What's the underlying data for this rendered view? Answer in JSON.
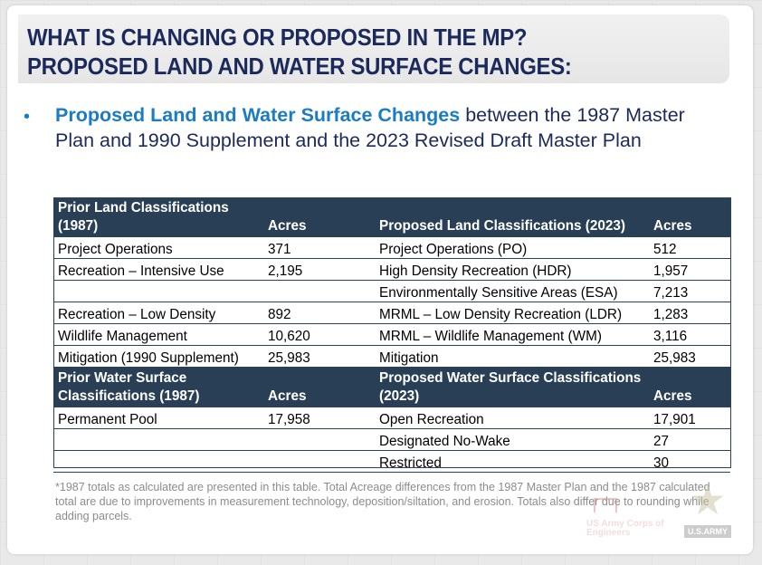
{
  "header": {
    "line1": "WHAT IS CHANGING OR PROPOSED IN THE MP?",
    "line2": "PROPOSED LAND AND WATER SURFACE CHANGES:"
  },
  "bullet": {
    "symbol": "•",
    "highlight": "Proposed Land and Water Surface Changes",
    "rest": " between the 1987 Master Plan and 1990 Supplement and the 2023 Revised Draft Master Plan"
  },
  "table": {
    "land_header": {
      "prior": "Prior Land Classifications (1987)",
      "prior_acres": "Acres",
      "proposed": "Proposed Land Classifications (2023)",
      "proposed_acres": "Acres"
    },
    "land_rows": [
      {
        "prior": "Project Operations",
        "prior_acres": "371",
        "proposed": "Project Operations (PO)",
        "proposed_acres": "512"
      },
      {
        "prior": "Recreation – Intensive Use",
        "prior_acres": "2,195",
        "proposed": "High Density Recreation (HDR)",
        "proposed_acres": "1,957"
      },
      {
        "prior": "",
        "prior_acres": "",
        "proposed": "Environmentally Sensitive Areas (ESA)",
        "proposed_acres": "7,213"
      },
      {
        "prior": "Recreation – Low Density",
        "prior_acres": "892",
        "proposed": "MRML – Low Density Recreation (LDR)",
        "proposed_acres": "1,283"
      },
      {
        "prior": "Wildlife Management",
        "prior_acres": "10,620",
        "proposed": "MRML – Wildlife Management (WM)",
        "proposed_acres": "3,116"
      },
      {
        "prior": "Mitigation (1990 Supplement)",
        "prior_acres": "25,983",
        "proposed": "Mitigation",
        "proposed_acres": "25,983"
      }
    ],
    "water_header": {
      "prior": "Prior Water Surface Classifications (1987)",
      "prior_acres": "Acres",
      "proposed": "Proposed Water Surface Classifications (2023)",
      "proposed_acres": "Acres"
    },
    "water_rows": [
      {
        "prior": "Permanent Pool",
        "prior_acres": "17,958",
        "proposed": "Open Recreation",
        "proposed_acres": "17,901"
      },
      {
        "prior": "",
        "prior_acres": "",
        "proposed": "Designated No-Wake",
        "proposed_acres": "27"
      },
      {
        "prior": "",
        "prior_acres": "",
        "proposed": "Restricted",
        "proposed_acres": "30"
      }
    ]
  },
  "footnote": "*1987 totals as calculated are presented in this table. Total Acreage differences from the 1987 Master Plan and the 1987 calculated total are due to improvements in measurement technology, deposition/siltation, and erosion. Totals also differ due to rounding while adding parcels.",
  "logos": {
    "usace_text": "US Army Corps of Engineers",
    "army_text": "U.S.ARMY",
    "army_star_icon": "star-icon"
  },
  "colors": {
    "title_navy": "#1b2a5b",
    "highlight_blue": "#1b7cc4",
    "table_header": "#293f55"
  }
}
